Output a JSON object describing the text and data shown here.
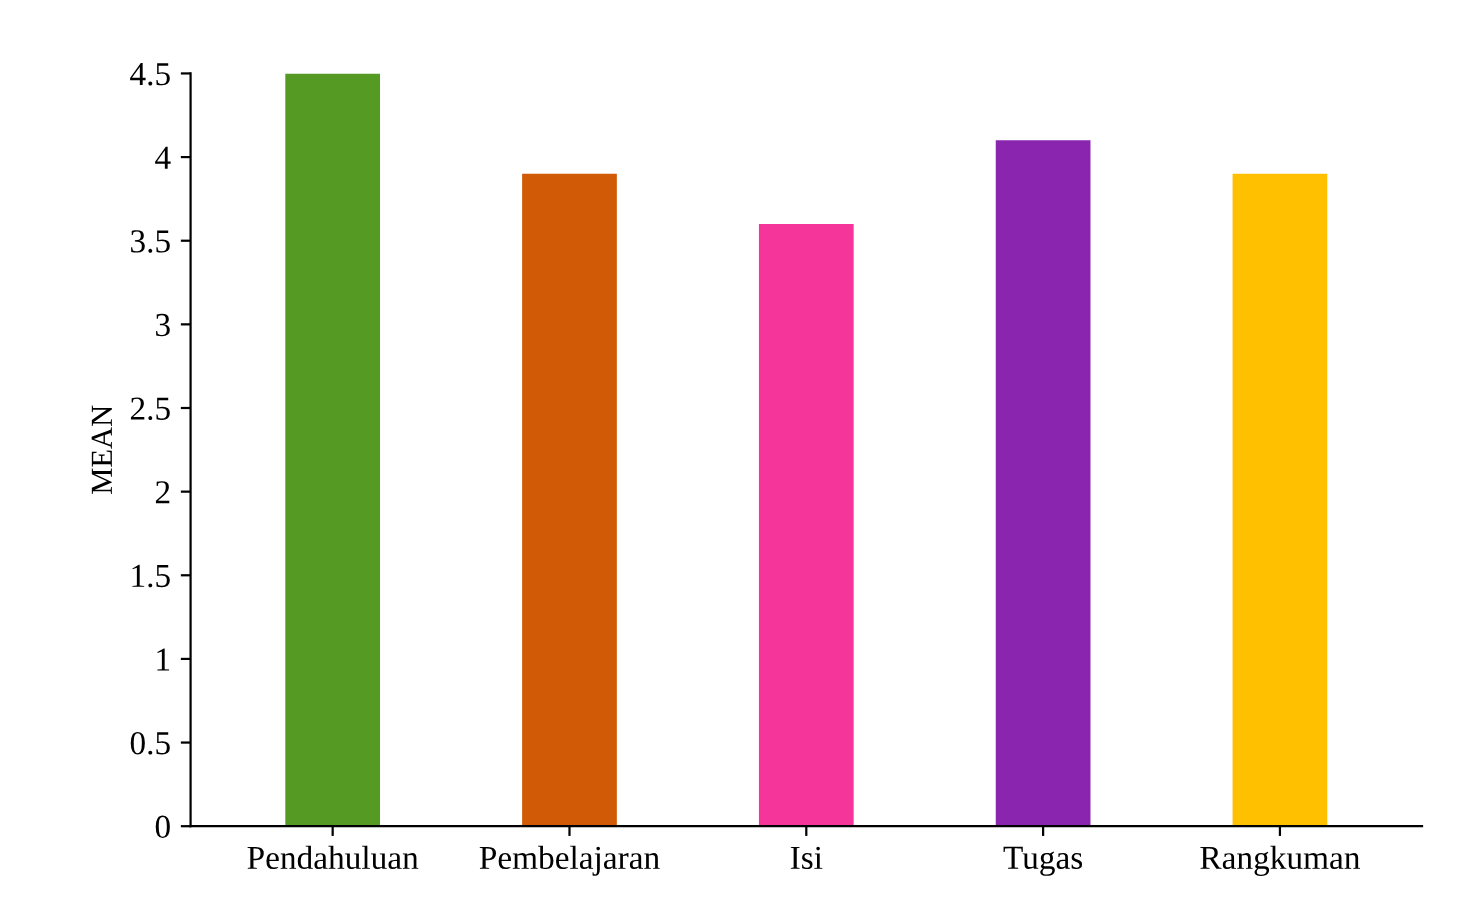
{
  "chart_data": {
    "type": "bar",
    "ylabel": "MEAN",
    "categories": [
      "Pendahuluan",
      "Pembelajaran",
      "Isi",
      "Tugas",
      "Rangkuman"
    ],
    "values": [
      4.5,
      3.9,
      3.6,
      4.1,
      3.9
    ],
    "colors": [
      "#559a22",
      "#d05a06",
      "#f5359a",
      "#8a25b0",
      "#ffc000"
    ],
    "ylim": [
      0,
      4.5
    ],
    "yticks": [
      0,
      0.5,
      1,
      1.5,
      2,
      2.5,
      3,
      3.5,
      4,
      4.5
    ],
    "grid": false,
    "legend": false
  }
}
